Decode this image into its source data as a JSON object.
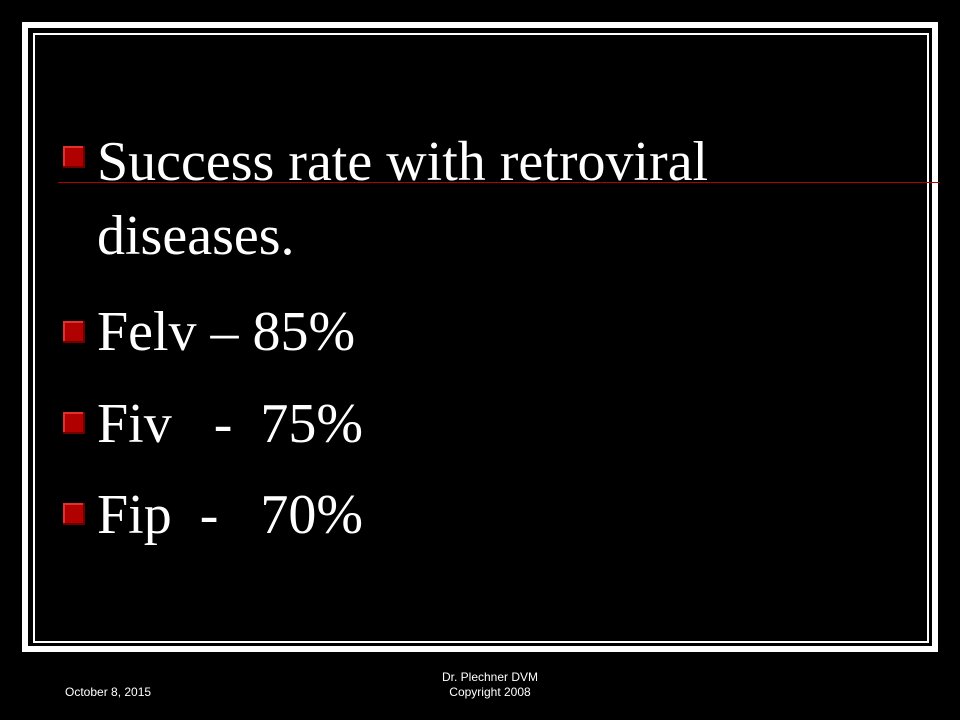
{
  "bullets": [
    "Success rate with retroviral diseases.",
    "Felv – 85%",
    "Fiv   -  75%",
    "Fip  -   70%"
  ],
  "footer": {
    "date": "October 8, 2015",
    "author": "Dr. Plechner DVM",
    "copyright": "Copyright 2008"
  }
}
